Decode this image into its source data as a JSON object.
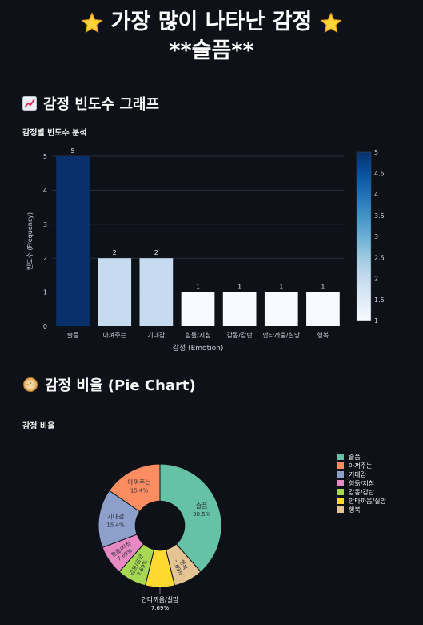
{
  "header": {
    "title_line1": "가장 많이 나타난 감정",
    "title_line2": "**슬픔**",
    "star_icon": "star-icon"
  },
  "bar_section": {
    "heading": "감정 빈도수 그래프",
    "icon": "chart-increasing-icon",
    "chart_title": "감정별 빈도수 분석"
  },
  "pie_section": {
    "heading": "감정 비율 (Pie Chart)",
    "icon": "pie-icon",
    "chart_title": "감정 비율"
  },
  "colors": {
    "background": "#0e1117",
    "scale_low": "#f7fbff",
    "scale_high": "#08306b"
  },
  "chart_data": [
    {
      "type": "bar",
      "title": "감정별 빈도수 분석",
      "xlabel": "감정 (Emotion)",
      "ylabel": "빈도수 (Frequency)",
      "categories": [
        "슬픔",
        "아껴주는",
        "기대감",
        "힘듦/지침",
        "감동/감탄",
        "안타까움/실망",
        "행복"
      ],
      "values": [
        5,
        2,
        2,
        1,
        1,
        1,
        1
      ],
      "ylim": [
        0,
        5
      ],
      "yticks": [
        0,
        1,
        2,
        3,
        4,
        5
      ],
      "colorscale": "Blues",
      "colorbar_ticks": [
        "1",
        "1.5",
        "2",
        "2.5",
        "3",
        "3.5",
        "4",
        "4.5",
        "5"
      ],
      "grid": true
    },
    {
      "type": "pie",
      "title": "감정 비율",
      "hole": 0.4,
      "legend_position": "right",
      "slices": [
        {
          "label": "슬픔",
          "value": 5,
          "percent": "38.5%",
          "color": "#66c2a5"
        },
        {
          "label": "행복",
          "value": 1,
          "percent": "7.69%",
          "color": "#e5c494"
        },
        {
          "label": "안타까움/실망",
          "value": 1,
          "percent": "7.69%",
          "color": "#ffd92f"
        },
        {
          "label": "감동/감탄",
          "value": 1,
          "percent": "7.69%",
          "color": "#a6d854"
        },
        {
          "label": "힘듦/지침",
          "value": 1,
          "percent": "7.69%",
          "color": "#e78ac3"
        },
        {
          "label": "기대감",
          "value": 2,
          "percent": "15.4%",
          "color": "#8da0cb"
        },
        {
          "label": "아껴주는",
          "value": 2,
          "percent": "15.4%",
          "color": "#fc8d62"
        }
      ],
      "legend": [
        {
          "label": "슬픔",
          "color": "#66c2a5"
        },
        {
          "label": "아껴주는",
          "color": "#fc8d62"
        },
        {
          "label": "기대감",
          "color": "#8da0cb"
        },
        {
          "label": "힘듦/지침",
          "color": "#e78ac3"
        },
        {
          "label": "감동/감탄",
          "color": "#a6d854"
        },
        {
          "label": "안타까움/실망",
          "color": "#ffd92f"
        },
        {
          "label": "행복",
          "color": "#e5c494"
        }
      ]
    }
  ]
}
